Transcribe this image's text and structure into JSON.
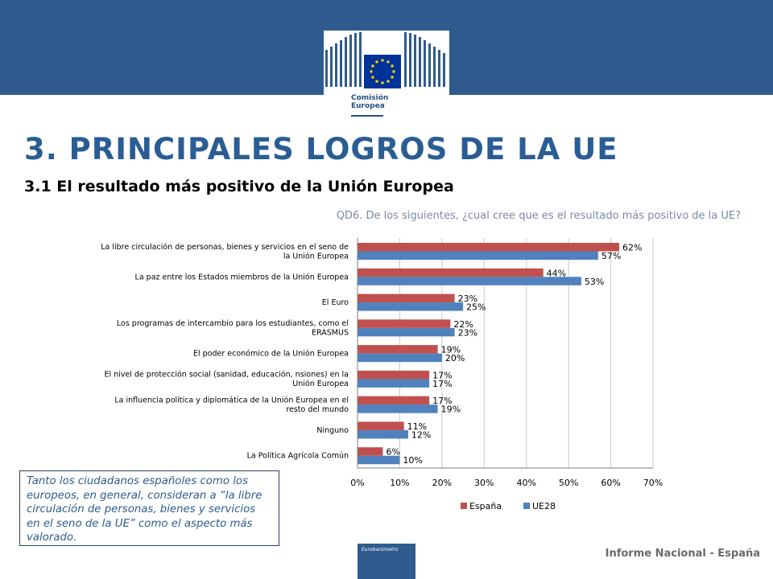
{
  "header": {
    "logo_text_line1": "Comisión",
    "logo_text_line2": "Europea",
    "logo_icon": "eu-flag-building-icon"
  },
  "page_title": "3. PRINCIPALES LOGROS DE LA UE",
  "subtitle": "3.1 El resultado más positivo de la Unión Europea",
  "question": "QD6. De los siguientes, ¿cual cree que es el resultado más positivo de la UE?",
  "chart_data": {
    "type": "bar",
    "orientation": "horizontal",
    "categories": [
      [
        "La libre circulación de personas, bienes y servicios en el seno de",
        "la Unión Europea"
      ],
      [
        "La paz entre los Estados miembros de la Unión Europea"
      ],
      [
        "El Euro"
      ],
      [
        "Los programas de intercambio para los estudiantes, como el",
        "ERASMUS"
      ],
      [
        "El poder económico de la Unión Europea"
      ],
      [
        "El nivel de protección social (sanidad, educación, nsiones) en la",
        "Unión Europea"
      ],
      [
        "La influencia política y diplomática de la Unión Europea en el",
        "resto del mundo"
      ],
      [
        "Ninguno"
      ],
      [
        "La Política Agrícola Común"
      ]
    ],
    "series": [
      {
        "name": "España",
        "color": "#c0504d",
        "values": [
          62,
          44,
          23,
          22,
          19,
          17,
          17,
          11,
          6
        ]
      },
      {
        "name": "UE28",
        "color": "#4f81bd",
        "values": [
          57,
          53,
          25,
          23,
          20,
          17,
          19,
          12,
          10
        ]
      }
    ],
    "value_suffix": "%",
    "xlim": [
      0,
      70
    ],
    "xticks": [
      0,
      10,
      20,
      30,
      40,
      50,
      60,
      70
    ],
    "xtick_labels": [
      "0%",
      "10%",
      "20%",
      "30%",
      "40%",
      "50%",
      "60%",
      "70%"
    ],
    "grid": "vertical",
    "legend": "bottom"
  },
  "note": "Tanto los ciudadanos españoles como los europeos, en general, consideran a “la libre circulación de personas, bienes y servicios en el seno de la UE” como el aspecto más valorado.",
  "eb_logo_text": "Eurobarómetro",
  "footer": "Informe Nacional - España"
}
